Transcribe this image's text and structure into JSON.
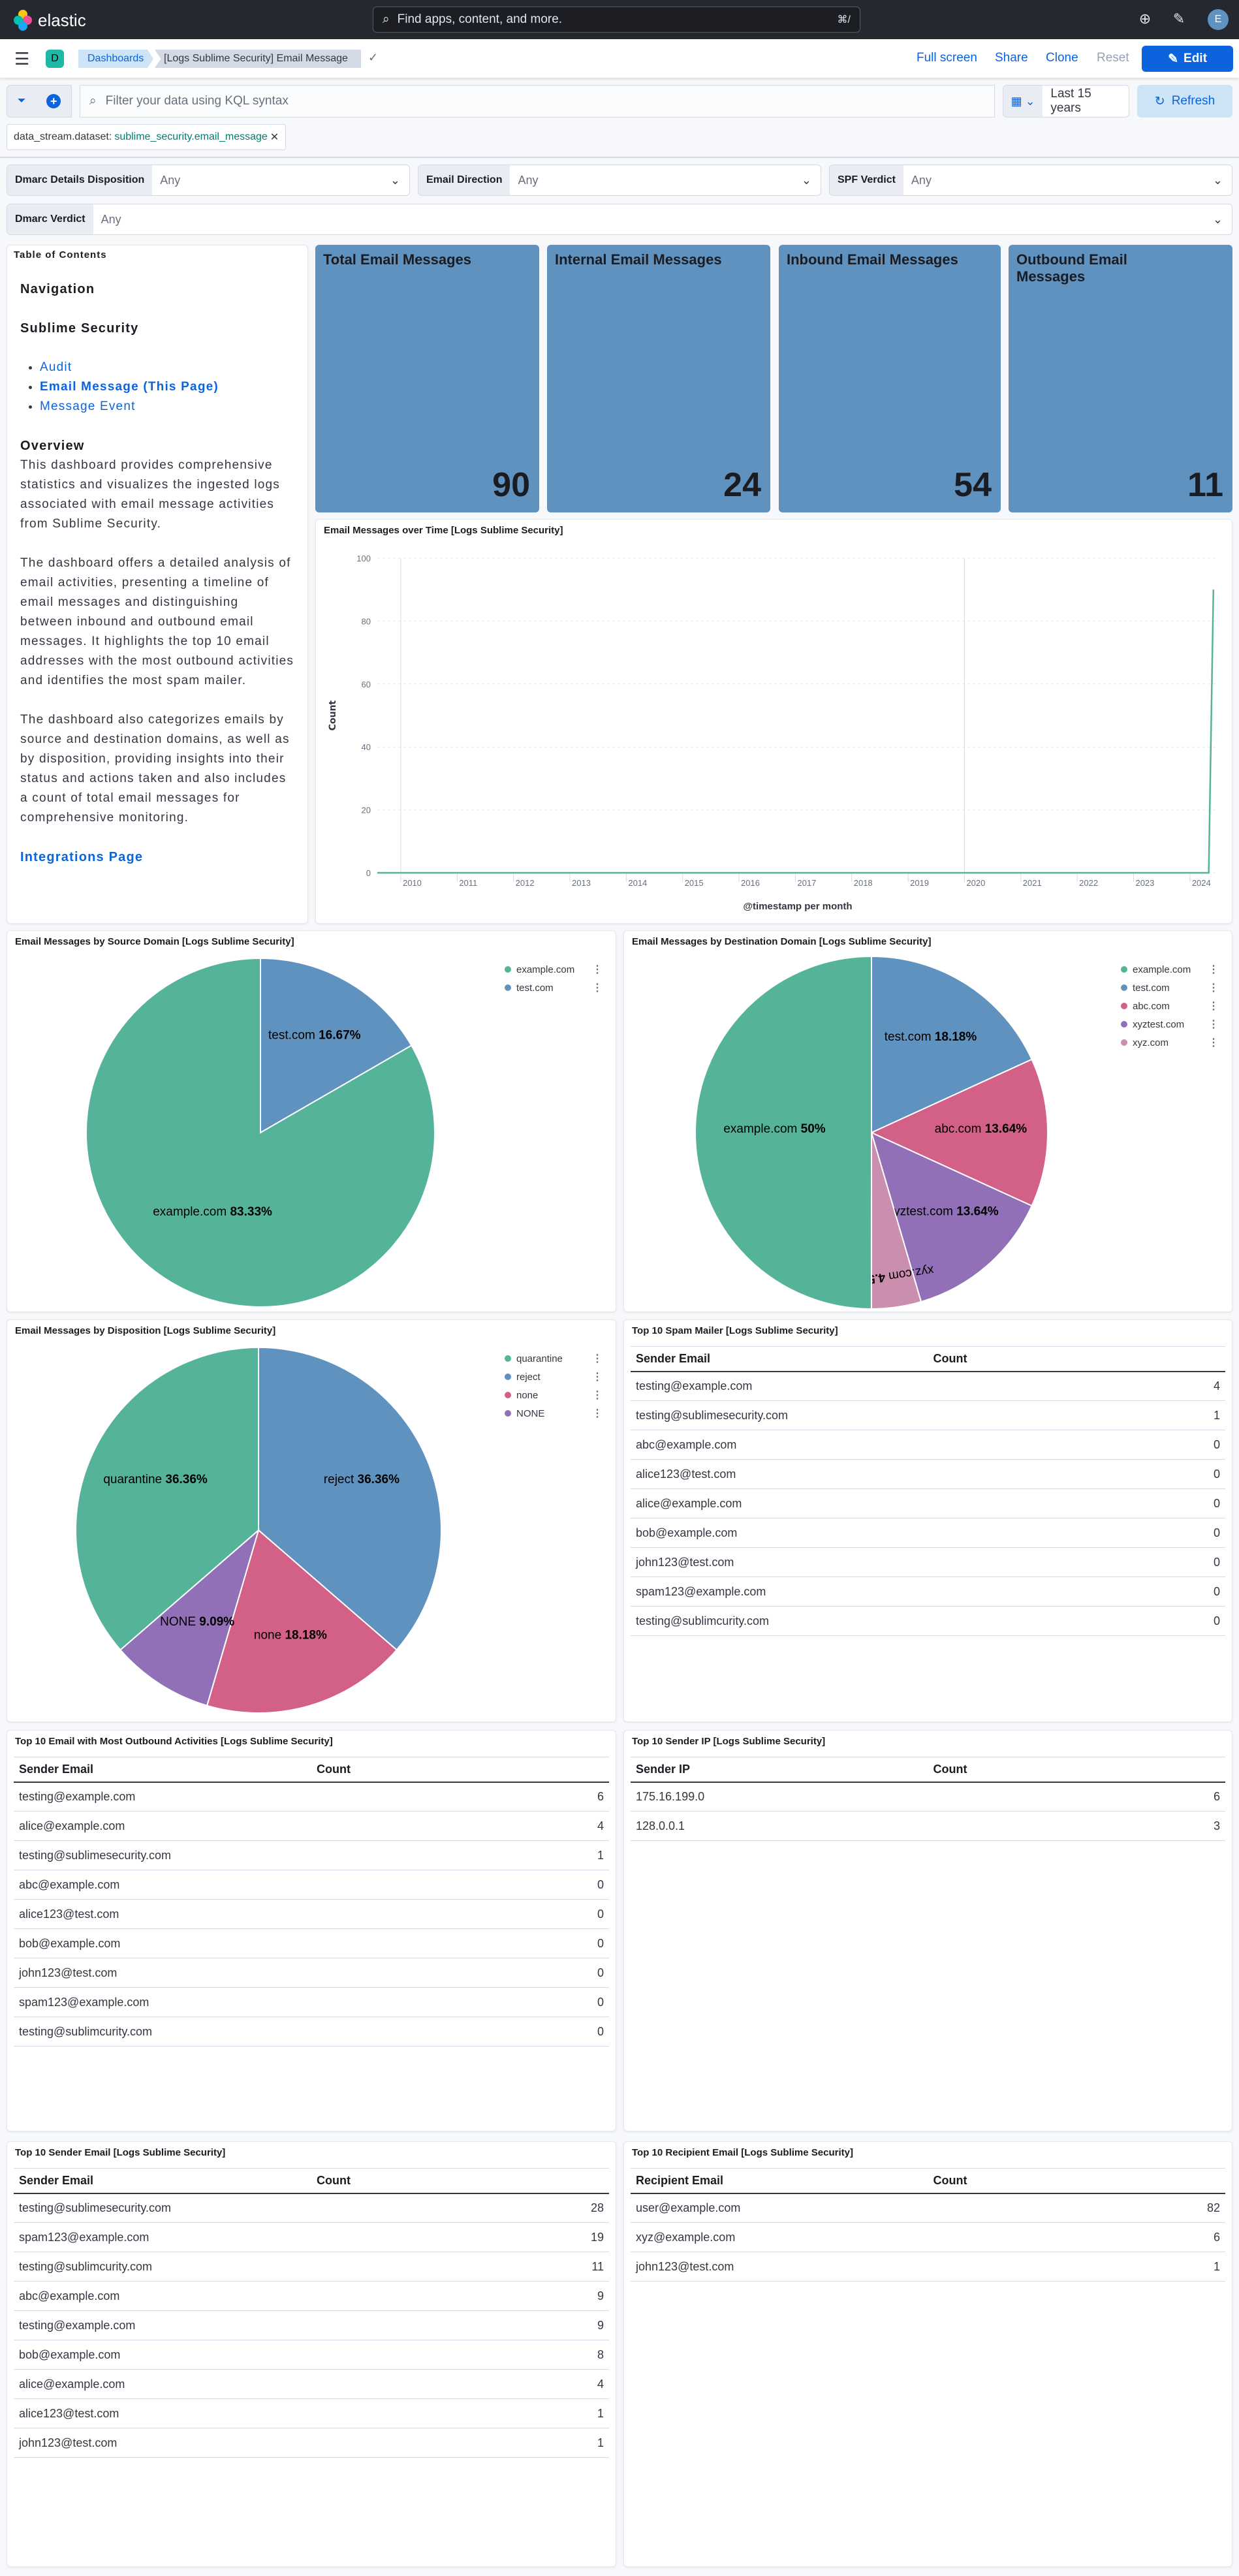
{
  "header": {
    "brand": "elastic",
    "search_placeholder": "Find apps, content, and more.",
    "search_shortcut": "⌘/",
    "avatar_initial": "E",
    "icons": [
      "help-icon",
      "newsfeed-icon"
    ]
  },
  "nav": {
    "space_badge": "D",
    "breadcrumbs": [
      "Dashboards",
      "[Logs Sublime Security] Email Message"
    ],
    "actions": {
      "full_screen": "Full screen",
      "share": "Share",
      "clone": "Clone",
      "reset": "Reset",
      "edit": "Edit"
    }
  },
  "query": {
    "placeholder": "Filter your data using KQL syntax",
    "time_range": "Last 15 years",
    "refresh": "Refresh"
  },
  "filter_pill": {
    "field": "data_stream.dataset:",
    "value": "sublime_security.email_message"
  },
  "controls": [
    {
      "label": "Dmarc Details Disposition",
      "value": "Any"
    },
    {
      "label": "Email Direction",
      "value": "Any"
    },
    {
      "label": "SPF Verdict",
      "value": "Any"
    },
    {
      "label": "Dmarc Verdict",
      "value": "Any"
    }
  ],
  "toc": {
    "title": "Table of Contents",
    "nav_heading": "Navigation",
    "section": "Sublime Security",
    "links": [
      "Audit",
      "Email Message (This Page)",
      "Message Event"
    ],
    "overview_heading": "Overview",
    "paragraphs": [
      "This dashboard provides comprehensive statistics and visualizes the ingested logs associated with email message activities from Sublime Security.",
      "The dashboard offers a detailed analysis of email activities, presenting a timeline of email messages and distinguishing between inbound and outbound email messages. It highlights the top 10 email addresses with the most outbound activities and identifies the most spam mailer.",
      "The dashboard also categorizes emails by source and destination domains, as well as by disposition, providing insights into their status and actions taken and also includes a count of total email messages for comprehensive monitoring."
    ],
    "integrations_link": "Integrations Page"
  },
  "metrics": [
    {
      "title": "Total Email Messages",
      "value": "90"
    },
    {
      "title": "Internal Email Messages",
      "value": "24"
    },
    {
      "title": "Inbound Email Messages",
      "value": "54"
    },
    {
      "title": "Outbound Email Messages",
      "value": "11"
    }
  ],
  "metric_color": "#6092C0",
  "chart_data": [
    {
      "type": "line",
      "title": "Email Messages over Time [Logs Sublime Security]",
      "xlabel": "@timestamp per month",
      "ylabel": "Count",
      "ylim": [
        0,
        100
      ],
      "yticks": [
        0,
        20,
        40,
        60,
        80,
        100
      ],
      "xticks": [
        "2010",
        "2011",
        "2012",
        "2013",
        "2014",
        "2015",
        "2016",
        "2017",
        "2018",
        "2019",
        "2020",
        "2021",
        "2022",
        "2023",
        "2024"
      ],
      "xlim": [
        "2009-08",
        "2024-07"
      ],
      "grid": true,
      "color": "#54B399",
      "points": [
        {
          "x": "2009-08",
          "y": 0
        },
        {
          "x": "2024-05",
          "y": 0
        },
        {
          "x": "2024-06",
          "y": 90
        }
      ]
    },
    {
      "type": "pie",
      "title": "Email Messages by Source Domain [Logs Sublime Security]",
      "legend": "top-right",
      "legend_order": [
        "example.com",
        "test.com"
      ],
      "slices": [
        {
          "label": "test.com",
          "value": 16.67,
          "pct": "16.67%",
          "color": "#6092C0"
        },
        {
          "label": "example.com",
          "value": 83.33,
          "pct": "83.33%",
          "color": "#54B399"
        }
      ]
    },
    {
      "type": "pie",
      "title": "Email Messages by Destination Domain [Logs Sublime Security]",
      "legend": "top-right",
      "legend_order": [
        "example.com",
        "test.com",
        "abc.com",
        "xyztest.com",
        "xyz.com"
      ],
      "slices": [
        {
          "label": "test.com",
          "value": 18.18,
          "pct": "18.18%",
          "color": "#6092C0"
        },
        {
          "label": "abc.com",
          "value": 13.64,
          "pct": "13.64%",
          "color": "#D36086"
        },
        {
          "label": "xyztest.com",
          "value": 13.64,
          "pct": "13.64%",
          "color": "#9170B8"
        },
        {
          "label": "xyz.com",
          "value": 4.55,
          "pct": "4.55%",
          "color": "#CA8EAE"
        },
        {
          "label": "example.com",
          "value": 50,
          "pct": "50%",
          "color": "#54B399"
        }
      ]
    },
    {
      "type": "pie",
      "title": "Email Messages by Disposition [Logs Sublime Security]",
      "legend": "top-right",
      "legend_order": [
        "quarantine",
        "reject",
        "none",
        "NONE"
      ],
      "slices": [
        {
          "label": "reject",
          "value": 36.36,
          "pct": "36.36%",
          "color": "#6092C0"
        },
        {
          "label": "none",
          "value": 18.18,
          "pct": "18.18%",
          "color": "#D36086"
        },
        {
          "label": "NONE",
          "value": 9.09,
          "pct": "9.09%",
          "color": "#9170B8"
        },
        {
          "label": "quarantine",
          "value": 36.36,
          "pct": "36.36%",
          "color": "#54B399"
        }
      ]
    }
  ],
  "tables": [
    {
      "title": "Top 10 Spam Mailer [Logs Sublime Security]",
      "columns": [
        "Sender Email",
        "Count"
      ],
      "rows": [
        [
          "testing@example.com",
          4
        ],
        [
          "testing@sublimesecurity.com",
          1
        ],
        [
          "abc@example.com",
          0
        ],
        [
          "alice123@test.com",
          0
        ],
        [
          "alice@example.com",
          0
        ],
        [
          "bob@example.com",
          0
        ],
        [
          "john123@test.com",
          0
        ],
        [
          "spam123@example.com",
          0
        ],
        [
          "testing@sublimcurity.com",
          0
        ]
      ]
    },
    {
      "title": "Top 10 Email with Most Outbound Activities [Logs Sublime Security]",
      "columns": [
        "Sender Email",
        "Count"
      ],
      "rows": [
        [
          "testing@example.com",
          6
        ],
        [
          "alice@example.com",
          4
        ],
        [
          "testing@sublimesecurity.com",
          1
        ],
        [
          "abc@example.com",
          0
        ],
        [
          "alice123@test.com",
          0
        ],
        [
          "bob@example.com",
          0
        ],
        [
          "john123@test.com",
          0
        ],
        [
          "spam123@example.com",
          0
        ],
        [
          "testing@sublimcurity.com",
          0
        ]
      ]
    },
    {
      "title": "Top 10 Sender IP [Logs Sublime Security]",
      "columns": [
        "Sender IP",
        "Count"
      ],
      "rows": [
        [
          "175.16.199.0",
          6
        ],
        [
          "128.0.0.1",
          3
        ]
      ]
    },
    {
      "title": "Top 10 Sender Email [Logs Sublime Security]",
      "columns": [
        "Sender Email",
        "Count"
      ],
      "rows": [
        [
          "testing@sublimesecurity.com",
          28
        ],
        [
          "spam123@example.com",
          19
        ],
        [
          "testing@sublimcurity.com",
          11
        ],
        [
          "abc@example.com",
          9
        ],
        [
          "testing@example.com",
          9
        ],
        [
          "bob@example.com",
          8
        ],
        [
          "alice@example.com",
          4
        ],
        [
          "alice123@test.com",
          1
        ],
        [
          "john123@test.com",
          1
        ]
      ]
    },
    {
      "title": "Top 10 Recipient Email [Logs Sublime Security]",
      "columns": [
        "Recipient Email",
        "Count"
      ],
      "rows": [
        [
          "user@example.com",
          82
        ],
        [
          "xyz@example.com",
          6
        ],
        [
          "john123@test.com",
          1
        ]
      ]
    }
  ]
}
